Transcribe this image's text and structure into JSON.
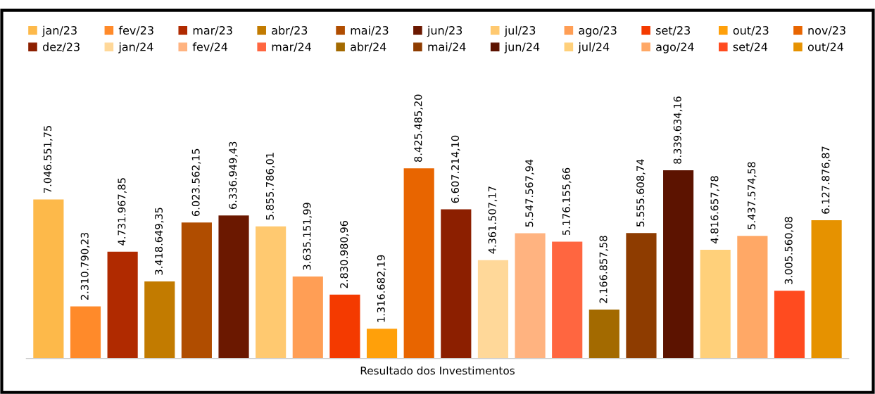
{
  "chart_data": {
    "type": "bar",
    "stacked": true,
    "xlabel": "Resultado dos Investimentos",
    "categories": [
      null,
      null,
      null,
      null,
      null,
      null,
      null,
      null,
      null,
      null,
      null,
      null,
      null,
      null,
      null,
      null,
      null,
      null,
      null,
      null,
      null,
      null
    ],
    "tick_labels": false,
    "legend": "top",
    "grid": false,
    "series": [
      {
        "name": "jan/23",
        "color": "#fdb94a",
        "values": [
          7046551.75,
          null,
          null,
          null,
          null,
          null,
          null,
          null,
          null,
          null,
          null,
          null,
          null,
          null,
          null,
          null,
          null,
          null,
          null,
          null,
          null,
          null
        ],
        "value_labels": [
          "7.046.551,75",
          null,
          null,
          null,
          null,
          null,
          null,
          null,
          null,
          null,
          null,
          null,
          null,
          null,
          null,
          null,
          null,
          null,
          null,
          null,
          null,
          null
        ]
      },
      {
        "name": "fev/23",
        "color": "#ff8a2a",
        "values": [
          null,
          2310790.23,
          null,
          null,
          null,
          null,
          null,
          null,
          null,
          null,
          null,
          null,
          null,
          null,
          null,
          null,
          null,
          null,
          null,
          null,
          null,
          null
        ],
        "value_labels": [
          null,
          "2.310.790,23",
          null,
          null,
          null,
          null,
          null,
          null,
          null,
          null,
          null,
          null,
          null,
          null,
          null,
          null,
          null,
          null,
          null,
          null,
          null,
          null
        ]
      },
      {
        "name": "mar/23",
        "color": "#b02a00",
        "values": [
          null,
          null,
          4731967.85,
          null,
          null,
          null,
          null,
          null,
          null,
          null,
          null,
          null,
          null,
          null,
          null,
          null,
          null,
          null,
          null,
          null,
          null,
          null
        ],
        "value_labels": [
          null,
          null,
          "4.731.967,85",
          null,
          null,
          null,
          null,
          null,
          null,
          null,
          null,
          null,
          null,
          null,
          null,
          null,
          null,
          null,
          null,
          null,
          null,
          null
        ]
      },
      {
        "name": "abr/23",
        "color": "#c27b00",
        "values": [
          null,
          null,
          null,
          3418649.35,
          null,
          null,
          null,
          null,
          null,
          null,
          null,
          null,
          null,
          null,
          null,
          null,
          null,
          null,
          null,
          null,
          null,
          null
        ],
        "value_labels": [
          null,
          null,
          null,
          "3.418.649,35",
          null,
          null,
          null,
          null,
          null,
          null,
          null,
          null,
          null,
          null,
          null,
          null,
          null,
          null,
          null,
          null,
          null,
          null
        ]
      },
      {
        "name": "mai/23",
        "color": "#b04d00",
        "values": [
          null,
          null,
          null,
          null,
          6023562.15,
          null,
          null,
          null,
          null,
          null,
          null,
          null,
          null,
          null,
          null,
          null,
          null,
          null,
          null,
          null,
          null,
          null
        ],
        "value_labels": [
          null,
          null,
          null,
          null,
          "6.023.562,15",
          null,
          null,
          null,
          null,
          null,
          null,
          null,
          null,
          null,
          null,
          null,
          null,
          null,
          null,
          null,
          null,
          null
        ]
      },
      {
        "name": "jun/23",
        "color": "#6b1800",
        "values": [
          null,
          null,
          null,
          null,
          null,
          6336949.43,
          null,
          null,
          null,
          null,
          null,
          null,
          null,
          null,
          null,
          null,
          null,
          null,
          null,
          null,
          null,
          null
        ],
        "value_labels": [
          null,
          null,
          null,
          null,
          null,
          "6.336.949,43",
          null,
          null,
          null,
          null,
          null,
          null,
          null,
          null,
          null,
          null,
          null,
          null,
          null,
          null,
          null,
          null
        ]
      },
      {
        "name": "jul/23",
        "color": "#ffc970",
        "values": [
          null,
          null,
          null,
          null,
          null,
          null,
          5855786.01,
          null,
          null,
          null,
          null,
          null,
          null,
          null,
          null,
          null,
          null,
          null,
          null,
          null,
          null,
          null
        ],
        "value_labels": [
          null,
          null,
          null,
          null,
          null,
          null,
          "5.855.786,01",
          null,
          null,
          null,
          null,
          null,
          null,
          null,
          null,
          null,
          null,
          null,
          null,
          null,
          null,
          null
        ]
      },
      {
        "name": "ago/23",
        "color": "#ff9e55",
        "values": [
          null,
          null,
          null,
          null,
          null,
          null,
          null,
          3635151.99,
          null,
          null,
          null,
          null,
          null,
          null,
          null,
          null,
          null,
          null,
          null,
          null,
          null,
          null
        ],
        "value_labels": [
          null,
          null,
          null,
          null,
          null,
          null,
          null,
          "3.635.151,99",
          null,
          null,
          null,
          null,
          null,
          null,
          null,
          null,
          null,
          null,
          null,
          null,
          null,
          null
        ]
      },
      {
        "name": "set/23",
        "color": "#f43a00",
        "values": [
          null,
          null,
          null,
          null,
          null,
          null,
          null,
          null,
          2830980.96,
          null,
          null,
          null,
          null,
          null,
          null,
          null,
          null,
          null,
          null,
          null,
          null,
          null
        ],
        "value_labels": [
          null,
          null,
          null,
          null,
          null,
          null,
          null,
          null,
          "2.830.980,96",
          null,
          null,
          null,
          null,
          null,
          null,
          null,
          null,
          null,
          null,
          null,
          null,
          null
        ]
      },
      {
        "name": "out/23",
        "color": "#ffa00a",
        "values": [
          null,
          null,
          null,
          null,
          null,
          null,
          null,
          null,
          null,
          1316682.19,
          null,
          null,
          null,
          null,
          null,
          null,
          null,
          null,
          null,
          null,
          null,
          null
        ],
        "value_labels": [
          null,
          null,
          null,
          null,
          null,
          null,
          null,
          null,
          null,
          "1.316.682,19",
          null,
          null,
          null,
          null,
          null,
          null,
          null,
          null,
          null,
          null,
          null,
          null
        ]
      },
      {
        "name": "nov/23",
        "color": "#e86500",
        "values": [
          null,
          null,
          null,
          null,
          null,
          null,
          null,
          null,
          null,
          null,
          8425485.2,
          null,
          null,
          null,
          null,
          null,
          null,
          null,
          null,
          null,
          null,
          null
        ],
        "value_labels": [
          null,
          null,
          null,
          null,
          null,
          null,
          null,
          null,
          null,
          null,
          "8.425.485,20",
          null,
          null,
          null,
          null,
          null,
          null,
          null,
          null,
          null,
          null,
          null
        ]
      },
      {
        "name": "dez/23",
        "color": "#8c1f00",
        "values": [
          null,
          null,
          null,
          null,
          null,
          null,
          null,
          null,
          null,
          null,
          null,
          6607214.1,
          null,
          null,
          null,
          null,
          null,
          null,
          null,
          null,
          null,
          null
        ],
        "value_labels": [
          null,
          null,
          null,
          null,
          null,
          null,
          null,
          null,
          null,
          null,
          null,
          "6.607.214,10",
          null,
          null,
          null,
          null,
          null,
          null,
          null,
          null,
          null,
          null
        ]
      },
      {
        "name": "jan/24",
        "color": "#ffd899",
        "values": [
          null,
          null,
          null,
          null,
          null,
          null,
          null,
          null,
          null,
          null,
          null,
          null,
          4361507.17,
          null,
          null,
          null,
          null,
          null,
          null,
          null,
          null,
          null
        ],
        "value_labels": [
          null,
          null,
          null,
          null,
          null,
          null,
          null,
          null,
          null,
          null,
          null,
          null,
          "4.361.507,17",
          null,
          null,
          null,
          null,
          null,
          null,
          null,
          null,
          null
        ]
      },
      {
        "name": "fev/24",
        "color": "#ffb380",
        "values": [
          null,
          null,
          null,
          null,
          null,
          null,
          null,
          null,
          null,
          null,
          null,
          null,
          null,
          5547567.94,
          null,
          null,
          null,
          null,
          null,
          null,
          null,
          null
        ],
        "value_labels": [
          null,
          null,
          null,
          null,
          null,
          null,
          null,
          null,
          null,
          null,
          null,
          null,
          null,
          "5.547.567,94",
          null,
          null,
          null,
          null,
          null,
          null,
          null,
          null
        ]
      },
      {
        "name": "mar/24",
        "color": "#ff6640",
        "values": [
          null,
          null,
          null,
          null,
          null,
          null,
          null,
          null,
          null,
          null,
          null,
          null,
          null,
          null,
          5176155.66,
          null,
          null,
          null,
          null,
          null,
          null,
          null
        ],
        "value_labels": [
          null,
          null,
          null,
          null,
          null,
          null,
          null,
          null,
          null,
          null,
          null,
          null,
          null,
          null,
          "5.176.155,66",
          null,
          null,
          null,
          null,
          null,
          null,
          null
        ]
      },
      {
        "name": "abr/24",
        "color": "#a36a00",
        "values": [
          null,
          null,
          null,
          null,
          null,
          null,
          null,
          null,
          null,
          null,
          null,
          null,
          null,
          null,
          null,
          2166857.58,
          null,
          null,
          null,
          null,
          null,
          null
        ],
        "value_labels": [
          null,
          null,
          null,
          null,
          null,
          null,
          null,
          null,
          null,
          null,
          null,
          null,
          null,
          null,
          null,
          "2.166.857,58",
          null,
          null,
          null,
          null,
          null,
          null
        ]
      },
      {
        "name": "mai/24",
        "color": "#8e3c00",
        "values": [
          null,
          null,
          null,
          null,
          null,
          null,
          null,
          null,
          null,
          null,
          null,
          null,
          null,
          null,
          null,
          null,
          5555608.74,
          null,
          null,
          null,
          null,
          null
        ],
        "value_labels": [
          null,
          null,
          null,
          null,
          null,
          null,
          null,
          null,
          null,
          null,
          null,
          null,
          null,
          null,
          null,
          null,
          "5.555.608,74",
          null,
          null,
          null,
          null,
          null
        ]
      },
      {
        "name": "jun/24",
        "color": "#5c1300",
        "values": [
          null,
          null,
          null,
          null,
          null,
          null,
          null,
          null,
          null,
          null,
          null,
          null,
          null,
          null,
          null,
          null,
          null,
          8339634.16,
          null,
          null,
          null,
          null
        ],
        "value_labels": [
          null,
          null,
          null,
          null,
          null,
          null,
          null,
          null,
          null,
          null,
          null,
          null,
          null,
          null,
          null,
          null,
          null,
          "8.339.634,16",
          null,
          null,
          null,
          null
        ]
      },
      {
        "name": "jul/24",
        "color": "#ffd07a",
        "values": [
          null,
          null,
          null,
          null,
          null,
          null,
          null,
          null,
          null,
          null,
          null,
          null,
          null,
          null,
          null,
          null,
          null,
          null,
          4816657.78,
          null,
          null,
          null
        ],
        "value_labels": [
          null,
          null,
          null,
          null,
          null,
          null,
          null,
          null,
          null,
          null,
          null,
          null,
          null,
          null,
          null,
          null,
          null,
          null,
          "4.816.657,78",
          null,
          null,
          null
        ]
      },
      {
        "name": "ago/24",
        "color": "#ffa866",
        "values": [
          null,
          null,
          null,
          null,
          null,
          null,
          null,
          null,
          null,
          null,
          null,
          null,
          null,
          null,
          null,
          null,
          null,
          null,
          null,
          5437574.58,
          null,
          null
        ],
        "value_labels": [
          null,
          null,
          null,
          null,
          null,
          null,
          null,
          null,
          null,
          null,
          null,
          null,
          null,
          null,
          null,
          null,
          null,
          null,
          null,
          "5.437.574,58",
          null,
          null
        ]
      },
      {
        "name": "set/24",
        "color": "#ff4b1f",
        "values": [
          null,
          null,
          null,
          null,
          null,
          null,
          null,
          null,
          null,
          null,
          null,
          null,
          null,
          null,
          null,
          null,
          null,
          null,
          null,
          null,
          3005560.08,
          null
        ],
        "value_labels": [
          null,
          null,
          null,
          null,
          null,
          null,
          null,
          null,
          null,
          null,
          null,
          null,
          null,
          null,
          null,
          null,
          null,
          null,
          null,
          null,
          "3.005.560,08",
          null
        ]
      },
      {
        "name": "out/24",
        "color": "#e69200",
        "values": [
          null,
          null,
          null,
          null,
          null,
          null,
          null,
          null,
          null,
          null,
          null,
          null,
          null,
          null,
          null,
          null,
          null,
          null,
          null,
          null,
          null,
          6127876.87
        ],
        "value_labels": [
          null,
          null,
          null,
          null,
          null,
          null,
          null,
          null,
          null,
          null,
          null,
          null,
          null,
          null,
          null,
          null,
          null,
          null,
          null,
          null,
          null,
          "6.127.876,87"
        ]
      }
    ]
  }
}
